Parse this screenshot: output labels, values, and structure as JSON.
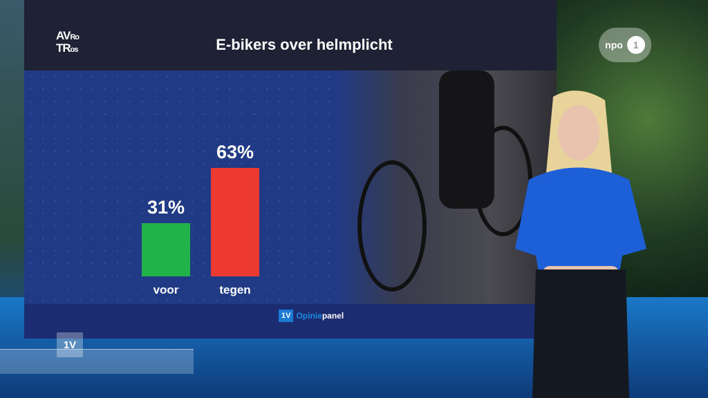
{
  "broadcaster_logo": "AVROTROS",
  "channel_logo": "NPO 1",
  "program_bug": "1V",
  "colors": {
    "voor": "#21b34a",
    "tegen": "#ec3a31",
    "panel": "#213a86"
  },
  "chart_data": {
    "type": "bar",
    "title": "E-bikers over helmplicht",
    "categories": [
      "voor",
      "tegen"
    ],
    "values": [
      31,
      63
    ],
    "value_labels": [
      "31%",
      "63%"
    ],
    "ylim": [
      0,
      100
    ],
    "grid": false
  },
  "footer": {
    "logo": "1V",
    "brand_part1": "Opinie",
    "brand_part2": "panel"
  }
}
